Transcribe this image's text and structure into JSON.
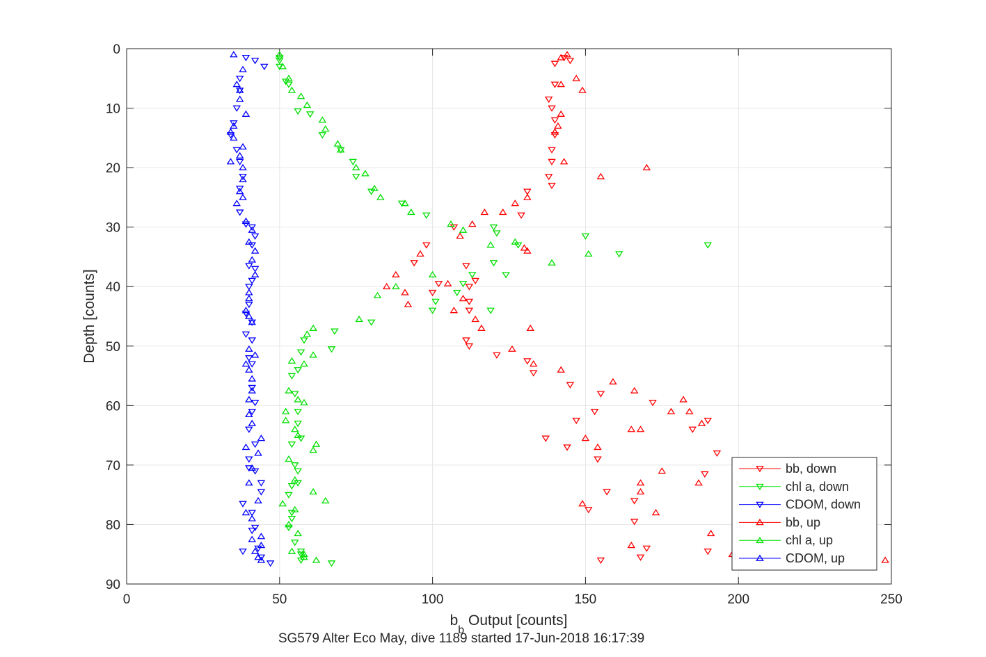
{
  "chart_data": {
    "type": "scatter",
    "title": "",
    "xlabel": "b_b Output [counts]",
    "xlabel_main": "b",
    "xlabel_sub": "b",
    "xlabel_rest": " Output [counts]",
    "ylabel": "Depth [counts]",
    "caption": "SG579 Alter Eco May, dive 1189 started 17-Jun-2018 16:17:39",
    "xlim": [
      0,
      250
    ],
    "ylim": [
      0,
      90
    ],
    "y_reversed": true,
    "grid": true,
    "legend_position": "bottom-right",
    "x_ticks": [
      0,
      50,
      100,
      150,
      200,
      250
    ],
    "x_tick_labels": [
      "0",
      "50",
      "100",
      "150",
      "200",
      "250"
    ],
    "y_ticks": [
      0,
      10,
      20,
      30,
      40,
      50,
      60,
      70,
      80,
      90
    ],
    "y_tick_labels": [
      "0",
      "10",
      "20",
      "30",
      "40",
      "50",
      "60",
      "70",
      "80",
      "90"
    ],
    "series": [
      {
        "name": "bb, down",
        "color": "#ff0000",
        "marker": "triangle-down",
        "points": [
          [
            145,
            2
          ],
          [
            143,
            1.5
          ],
          [
            140,
            2.5
          ],
          [
            140,
            6
          ],
          [
            138,
            8.5
          ],
          [
            139,
            10
          ],
          [
            140,
            12
          ],
          [
            140,
            14.5
          ],
          [
            139,
            17
          ],
          [
            139,
            19
          ],
          [
            138,
            21.5
          ],
          [
            139,
            23
          ],
          [
            131,
            24
          ],
          [
            129,
            28
          ],
          [
            107,
            30
          ],
          [
            98,
            33
          ],
          [
            94,
            36
          ],
          [
            102,
            39.5
          ],
          [
            100,
            41
          ],
          [
            111,
            36.5
          ],
          [
            112,
            40
          ],
          [
            112,
            42.5
          ],
          [
            112,
            44
          ],
          [
            114,
            39
          ],
          [
            111,
            49
          ],
          [
            112,
            50
          ],
          [
            121,
            51.5
          ],
          [
            131,
            52.5
          ],
          [
            133,
            54.5
          ],
          [
            145,
            56.5
          ],
          [
            155,
            58
          ],
          [
            153,
            61
          ],
          [
            147,
            62.5
          ],
          [
            137,
            65.5
          ],
          [
            144,
            67
          ],
          [
            154,
            69
          ],
          [
            157,
            74.5
          ],
          [
            151,
            77.5
          ],
          [
            166,
            79.5
          ],
          [
            168,
            85.5
          ],
          [
            170,
            84
          ],
          [
            155,
            86
          ],
          [
            190,
            84.5
          ],
          [
            193,
            68
          ],
          [
            189,
            71.5
          ],
          [
            190,
            62.5
          ],
          [
            185,
            64
          ],
          [
            172,
            59.5
          ],
          [
            166,
            76
          ]
        ]
      },
      {
        "name": "chl a, down",
        "color": "#00e000",
        "marker": "triangle-down",
        "points": [
          [
            50,
            1.5
          ],
          [
            50,
            2
          ],
          [
            50,
            3
          ],
          [
            52,
            5.5
          ],
          [
            53,
            6
          ],
          [
            56,
            10.5
          ],
          [
            60,
            11
          ],
          [
            64,
            14.5
          ],
          [
            70,
            17
          ],
          [
            74,
            19
          ],
          [
            75,
            21.5
          ],
          [
            80,
            24
          ],
          [
            90,
            26
          ],
          [
            98,
            28
          ],
          [
            121,
            31
          ],
          [
            120,
            30
          ],
          [
            124,
            38
          ],
          [
            120,
            36
          ],
          [
            119,
            44
          ],
          [
            113,
            38
          ],
          [
            110,
            39.5
          ],
          [
            108,
            41
          ],
          [
            101,
            42.5
          ],
          [
            100,
            44
          ],
          [
            80,
            46
          ],
          [
            68,
            47.5
          ],
          [
            67,
            50.5
          ],
          [
            58,
            49
          ],
          [
            57,
            51
          ],
          [
            56,
            54
          ],
          [
            54,
            55
          ],
          [
            55,
            58
          ],
          [
            56,
            61
          ],
          [
            56,
            63
          ],
          [
            57,
            65.5
          ],
          [
            54,
            66.5
          ],
          [
            55,
            70
          ],
          [
            54,
            73.5
          ],
          [
            53,
            75
          ],
          [
            56,
            71
          ],
          [
            56,
            73
          ],
          [
            54,
            78
          ],
          [
            54,
            79
          ],
          [
            53,
            80.5
          ],
          [
            55,
            83
          ],
          [
            57,
            84.5
          ],
          [
            57,
            85
          ],
          [
            57,
            86
          ],
          [
            67,
            86.5
          ],
          [
            150,
            31.5
          ],
          [
            190,
            33
          ],
          [
            161,
            34.5
          ],
          [
            128,
            33
          ]
        ]
      },
      {
        "name": "CDOM, down",
        "color": "#0000ff",
        "marker": "triangle-down",
        "points": [
          [
            39,
            1.5
          ],
          [
            42,
            2
          ],
          [
            45,
            3
          ],
          [
            37,
            5
          ],
          [
            37,
            7
          ],
          [
            36,
            10
          ],
          [
            35,
            12.5
          ],
          [
            34,
            14.5
          ],
          [
            36,
            17
          ],
          [
            37,
            19
          ],
          [
            38,
            21.5
          ],
          [
            37,
            23.5
          ],
          [
            37,
            27.5
          ],
          [
            39,
            29.5
          ],
          [
            41,
            30
          ],
          [
            42,
            31.5
          ],
          [
            41,
            33
          ],
          [
            40,
            36.5
          ],
          [
            42,
            37
          ],
          [
            41,
            39
          ],
          [
            40,
            40
          ],
          [
            40,
            43
          ],
          [
            39,
            44.5
          ],
          [
            41,
            46
          ],
          [
            39,
            48
          ],
          [
            41,
            49
          ],
          [
            40,
            52
          ],
          [
            41,
            53
          ],
          [
            41,
            57
          ],
          [
            42,
            59.5
          ],
          [
            41,
            61
          ],
          [
            40,
            64
          ],
          [
            42,
            66.5
          ],
          [
            40,
            69
          ],
          [
            40,
            70.5
          ],
          [
            42,
            71
          ],
          [
            44,
            73
          ],
          [
            44,
            74.5
          ],
          [
            38,
            76.5
          ],
          [
            41,
            78
          ],
          [
            42,
            80.5
          ],
          [
            41,
            81
          ],
          [
            43,
            84
          ],
          [
            44,
            85.5
          ],
          [
            38,
            84.5
          ],
          [
            47,
            86.5
          ]
        ]
      },
      {
        "name": "bb, up",
        "color": "#ff0000",
        "marker": "triangle-up",
        "points": [
          [
            144,
            1
          ],
          [
            142,
            1.5
          ],
          [
            147,
            5
          ],
          [
            142,
            6
          ],
          [
            149,
            7
          ],
          [
            142,
            11
          ],
          [
            141,
            13
          ],
          [
            140,
            14
          ],
          [
            143,
            19
          ],
          [
            155,
            21.5
          ],
          [
            170,
            20
          ],
          [
            131,
            25
          ],
          [
            127,
            26
          ],
          [
            123,
            27.5
          ],
          [
            117,
            27.5
          ],
          [
            113,
            29.5
          ],
          [
            109,
            31.5
          ],
          [
            130,
            33.5
          ],
          [
            131,
            34
          ],
          [
            96,
            34.5
          ],
          [
            88,
            38
          ],
          [
            85,
            40
          ],
          [
            91,
            41
          ],
          [
            92,
            43
          ],
          [
            105,
            39.5
          ],
          [
            107,
            44
          ],
          [
            114,
            45.5
          ],
          [
            116,
            47
          ],
          [
            110,
            42
          ],
          [
            132,
            47
          ],
          [
            126,
            50.5
          ],
          [
            133,
            53
          ],
          [
            142,
            54
          ],
          [
            159,
            56
          ],
          [
            166,
            57.5
          ],
          [
            182,
            59
          ],
          [
            178,
            61
          ],
          [
            184,
            61
          ],
          [
            188,
            63
          ],
          [
            165,
            64
          ],
          [
            168,
            64
          ],
          [
            150,
            65.5
          ],
          [
            154,
            67
          ],
          [
            175,
            71
          ],
          [
            187,
            73
          ],
          [
            168,
            73
          ],
          [
            168,
            74.5
          ],
          [
            149,
            76.5
          ],
          [
            173,
            78
          ],
          [
            191,
            81.5
          ],
          [
            165,
            83.5
          ],
          [
            198,
            85
          ],
          [
            248,
            86
          ]
        ]
      },
      {
        "name": "chl a, up",
        "color": "#00e000",
        "marker": "triangle-up",
        "points": [
          [
            50,
            1
          ],
          [
            51,
            3
          ],
          [
            53,
            5
          ],
          [
            54,
            7
          ],
          [
            57,
            8
          ],
          [
            59,
            9.5
          ],
          [
            64,
            12
          ],
          [
            65,
            13.5
          ],
          [
            69,
            16
          ],
          [
            70,
            17
          ],
          [
            75,
            20
          ],
          [
            78,
            21
          ],
          [
            81,
            23.5
          ],
          [
            83,
            25
          ],
          [
            91,
            26
          ],
          [
            93,
            27.5
          ],
          [
            106,
            29.5
          ],
          [
            110,
            30.5
          ],
          [
            119,
            33
          ],
          [
            127,
            32.5
          ],
          [
            139,
            36
          ],
          [
            151,
            34.5
          ],
          [
            100,
            38
          ],
          [
            88,
            40
          ],
          [
            82,
            41.5
          ],
          [
            76,
            45.5
          ],
          [
            61,
            47
          ],
          [
            59,
            48
          ],
          [
            61,
            51.5
          ],
          [
            58,
            53
          ],
          [
            54,
            52.5
          ],
          [
            53,
            57.5
          ],
          [
            58,
            59.5
          ],
          [
            56,
            59
          ],
          [
            52,
            61
          ],
          [
            52,
            62.5
          ],
          [
            55,
            64
          ],
          [
            56,
            65
          ],
          [
            62,
            66.5
          ],
          [
            61,
            67.5
          ],
          [
            53,
            69
          ],
          [
            55,
            72.5
          ],
          [
            61,
            74.5
          ],
          [
            65,
            76
          ],
          [
            51,
            76.5
          ],
          [
            55,
            77.5
          ],
          [
            53,
            80
          ],
          [
            56,
            81.5
          ],
          [
            54,
            84.5
          ],
          [
            58,
            85
          ],
          [
            58,
            85.5
          ],
          [
            62,
            86
          ]
        ]
      },
      {
        "name": "CDOM, up",
        "color": "#0000ff",
        "marker": "triangle-up",
        "points": [
          [
            35,
            1
          ],
          [
            38,
            3.5
          ],
          [
            36,
            6
          ],
          [
            37,
            7
          ],
          [
            37,
            8.5
          ],
          [
            39,
            11
          ],
          [
            35,
            13
          ],
          [
            34,
            14
          ],
          [
            35,
            15
          ],
          [
            38,
            16.5
          ],
          [
            37,
            18
          ],
          [
            34,
            19
          ],
          [
            38,
            20
          ],
          [
            38,
            22
          ],
          [
            37,
            24
          ],
          [
            38,
            25
          ],
          [
            36,
            26
          ],
          [
            39,
            29
          ],
          [
            41,
            30.5
          ],
          [
            40,
            32.5
          ],
          [
            42,
            34
          ],
          [
            41,
            35.5
          ],
          [
            42,
            38
          ],
          [
            40,
            41
          ],
          [
            40,
            42
          ],
          [
            39,
            44
          ],
          [
            40,
            45
          ],
          [
            41,
            46
          ],
          [
            40,
            50.5
          ],
          [
            42,
            51.5
          ],
          [
            39,
            53
          ],
          [
            40,
            54
          ],
          [
            41,
            55.5
          ],
          [
            41,
            57.5
          ],
          [
            40,
            59
          ],
          [
            40,
            61.5
          ],
          [
            41,
            63
          ],
          [
            44,
            65.5
          ],
          [
            39,
            67
          ],
          [
            43,
            68
          ],
          [
            41,
            70.5
          ],
          [
            40,
            73
          ],
          [
            43,
            76
          ],
          [
            39,
            78
          ],
          [
            41,
            79
          ],
          [
            44,
            82
          ],
          [
            41,
            82.5
          ],
          [
            44,
            83.5
          ],
          [
            42,
            84.5
          ],
          [
            43,
            85.5
          ],
          [
            44,
            86
          ]
        ]
      }
    ]
  }
}
